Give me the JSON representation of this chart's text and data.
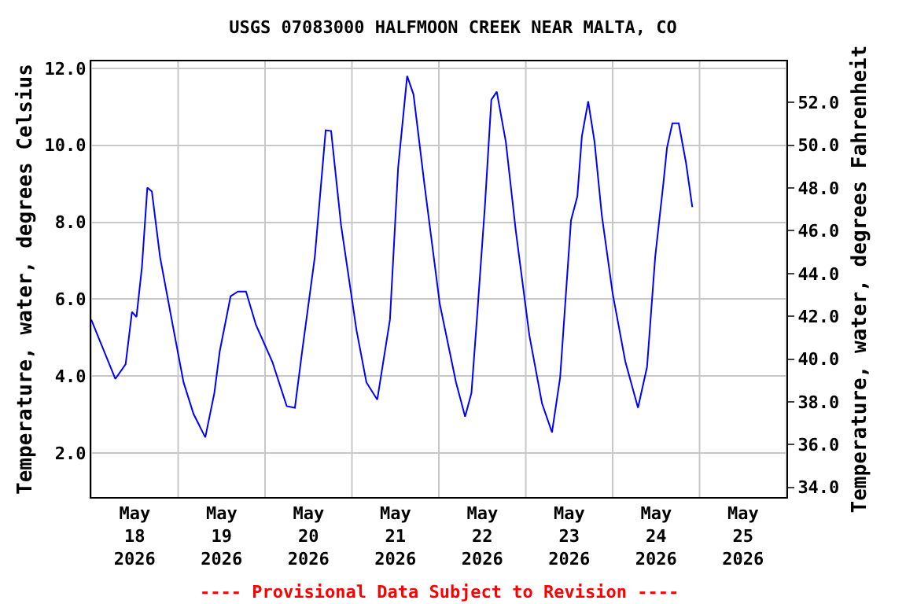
{
  "chart_data": {
    "type": "line",
    "title": "USGS 07083000 HALFMOON CREEK NEAR MALTA, CO",
    "ylabel": "Temperature, water, degrees Celsius",
    "y2label": "Temperature, water, degrees Fahrenheit",
    "annotations": [
      "---- Provisional Data Subject to Revision ----"
    ],
    "x": [
      "2026-05-18T00:00",
      "2026-05-18T06:40",
      "2026-05-18T09:30",
      "2026-05-18T11:15",
      "2026-05-18T12:30",
      "2026-05-18T14:00",
      "2026-05-18T15:30",
      "2026-05-18T16:45",
      "2026-05-18T19:00",
      "2026-05-18T22:30",
      "2026-05-19T01:30",
      "2026-05-19T04:15",
      "2026-05-19T07:30",
      "2026-05-19T10:00",
      "2026-05-19T11:30",
      "2026-05-19T14:30",
      "2026-05-19T16:30",
      "2026-05-19T18:45",
      "2026-05-19T21:30",
      "2026-05-20T02:00",
      "2026-05-20T06:00",
      "2026-05-20T08:15",
      "2026-05-20T10:15",
      "2026-05-20T13:45",
      "2026-05-20T16:45",
      "2026-05-20T18:15",
      "2026-05-20T21:00",
      "2026-05-21T01:15",
      "2026-05-21T04:00",
      "2026-05-21T07:00",
      "2026-05-21T10:30",
      "2026-05-21T12:45",
      "2026-05-21T15:15",
      "2026-05-21T17:00",
      "2026-05-21T20:00",
      "2026-05-22T00:15",
      "2026-05-22T04:45",
      "2026-05-22T07:15",
      "2026-05-22T09:00",
      "2026-05-22T10:30",
      "2026-05-22T12:45",
      "2026-05-22T14:30",
      "2026-05-22T16:00",
      "2026-05-22T18:30",
      "2026-05-22T21:15",
      "2026-05-23T01:00",
      "2026-05-23T04:30",
      "2026-05-23T07:15",
      "2026-05-23T09:30",
      "2026-05-23T11:00",
      "2026-05-23T12:30",
      "2026-05-23T14:15",
      "2026-05-23T15:30",
      "2026-05-23T17:15",
      "2026-05-23T19:00",
      "2026-05-23T21:00",
      "2026-05-24T00:00",
      "2026-05-24T03:30",
      "2026-05-24T07:00",
      "2026-05-24T09:30",
      "2026-05-24T11:45",
      "2026-05-24T14:00",
      "2026-05-24T15:00",
      "2026-05-24T16:30",
      "2026-05-24T18:15",
      "2026-05-24T20:15",
      "2026-05-24T22:00"
    ],
    "series": [
      {
        "color": "#0000ff",
        "values": [
          5.47,
          3.93,
          4.31,
          5.67,
          5.54,
          6.83,
          8.9,
          8.8,
          7.1,
          5.33,
          3.84,
          3.02,
          2.41,
          3.56,
          4.65,
          6.08,
          6.2,
          6.2,
          5.33,
          4.38,
          3.22,
          3.18,
          4.65,
          7.1,
          10.39,
          10.37,
          7.92,
          5.2,
          3.84,
          3.39,
          5.47,
          9.41,
          11.8,
          11.32,
          9.0,
          5.88,
          3.84,
          2.95,
          3.56,
          5.47,
          8.46,
          11.18,
          11.39,
          10.09,
          7.78,
          5.06,
          3.29,
          2.54,
          3.97,
          6.01,
          8.05,
          8.67,
          10.23,
          11.14,
          10.09,
          8.19,
          6.15,
          4.38,
          3.18,
          4.24,
          7.1,
          9.0,
          9.93,
          10.57,
          10.57,
          9.55,
          8.39
        ]
      }
    ],
    "xlim": [
      "2026-05-18T00:00",
      "2026-05-26T00:00"
    ],
    "xticks": [
      {
        "value": "2026-05-18T00:00",
        "label": null
      },
      {
        "value": "2026-05-18T12:00",
        "label": "May\n18\n2026"
      },
      {
        "value": "2026-05-19T00:00",
        "label": null
      },
      {
        "value": "2026-05-19T12:00",
        "label": "May\n19\n2026"
      },
      {
        "value": "2026-05-20T00:00",
        "label": null
      },
      {
        "value": "2026-05-20T12:00",
        "label": "May\n20\n2026"
      },
      {
        "value": "2026-05-21T00:00",
        "label": null
      },
      {
        "value": "2026-05-21T12:00",
        "label": "May\n21\n2026"
      },
      {
        "value": "2026-05-22T00:00",
        "label": null
      },
      {
        "value": "2026-05-22T12:00",
        "label": "May\n22\n2026"
      },
      {
        "value": "2026-05-23T00:00",
        "label": null
      },
      {
        "value": "2026-05-23T12:00",
        "label": "May\n23\n2026"
      },
      {
        "value": "2026-05-24T00:00",
        "label": null
      },
      {
        "value": "2026-05-24T12:00",
        "label": "May\n24\n2026"
      },
      {
        "value": "2026-05-25T00:00",
        "label": null
      },
      {
        "value": "2026-05-25T12:00",
        "label": "May\n25\n2026"
      },
      {
        "value": "2026-05-26T00:00",
        "label": null
      }
    ],
    "ylim": [
      0.86,
      12.18
    ],
    "yticks": [
      {
        "value": 2,
        "label": "2.0"
      },
      {
        "value": 4,
        "label": "4.0"
      },
      {
        "value": 6,
        "label": "6.0"
      },
      {
        "value": 8,
        "label": "8.0"
      },
      {
        "value": 10,
        "label": "10.0"
      },
      {
        "value": 12,
        "label": "12.0"
      }
    ],
    "y2lim": [
      33.55,
      53.92
    ],
    "y2ticks": [
      {
        "value": 34,
        "label": "34.0"
      },
      {
        "value": 36,
        "label": "36.0"
      },
      {
        "value": 38,
        "label": "38.0"
      },
      {
        "value": 40,
        "label": "40.0"
      },
      {
        "value": 42,
        "label": "42.0"
      },
      {
        "value": 44,
        "label": "44.0"
      },
      {
        "value": 46,
        "label": "46.0"
      },
      {
        "value": 48,
        "label": "48.0"
      },
      {
        "value": 50,
        "label": "50.0"
      },
      {
        "value": 52,
        "label": "52.0"
      }
    ],
    "grid": true,
    "legend": false,
    "marker": "none",
    "line_style": "solid"
  }
}
